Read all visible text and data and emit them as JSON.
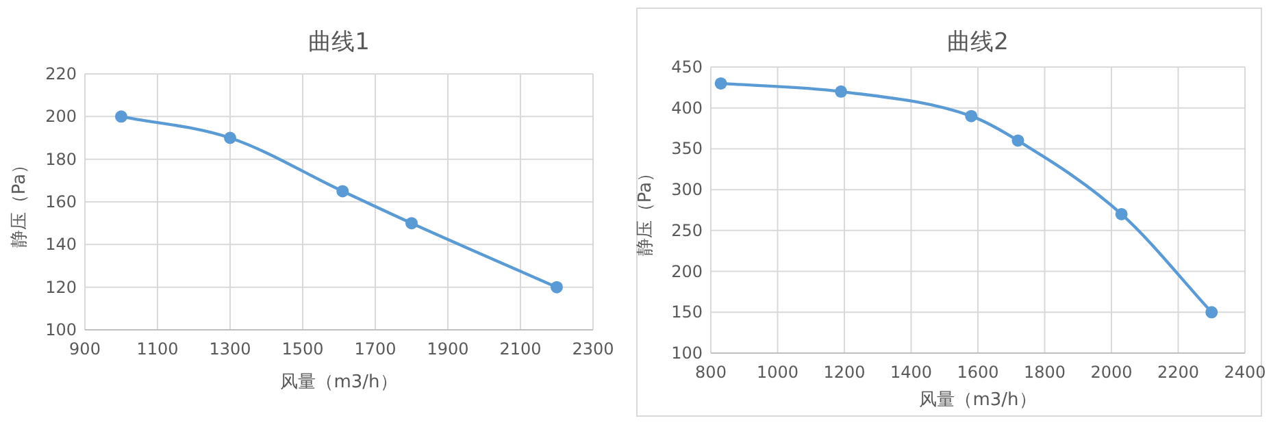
{
  "chart_data": [
    {
      "type": "line",
      "title": "曲线1",
      "xlabel": "风量（m3/h）",
      "ylabel": "静压（Pa）",
      "x": [
        1000,
        1300,
        1610,
        1800,
        2200
      ],
      "series": [
        {
          "color": "#5b9bd5",
          "values": [
            200,
            190,
            165,
            150,
            120
          ]
        }
      ],
      "xlim": [
        900,
        2300
      ],
      "xticks": [
        900,
        1100,
        1300,
        1500,
        1700,
        1900,
        2100,
        2300
      ],
      "ylim": [
        100,
        220
      ],
      "yticks": [
        100,
        120,
        140,
        160,
        180,
        200,
        220
      ],
      "grid": true,
      "marker": "circle"
    },
    {
      "type": "line",
      "title": "曲线2",
      "xlabel": "风量（m3/h）",
      "ylabel": "静压（Pa）",
      "x": [
        830,
        1190,
        1580,
        1720,
        2030,
        2300
      ],
      "series": [
        {
          "color": "#5b9bd5",
          "values": [
            430,
            420,
            390,
            360,
            270,
            150
          ]
        }
      ],
      "xlim": [
        800,
        2400
      ],
      "xticks": [
        800,
        1000,
        1200,
        1400,
        1600,
        1800,
        2000,
        2200,
        2400
      ],
      "ylim": [
        100,
        450
      ],
      "yticks": [
        100,
        150,
        200,
        250,
        300,
        350,
        400,
        450
      ],
      "grid": true,
      "marker": "circle"
    }
  ]
}
